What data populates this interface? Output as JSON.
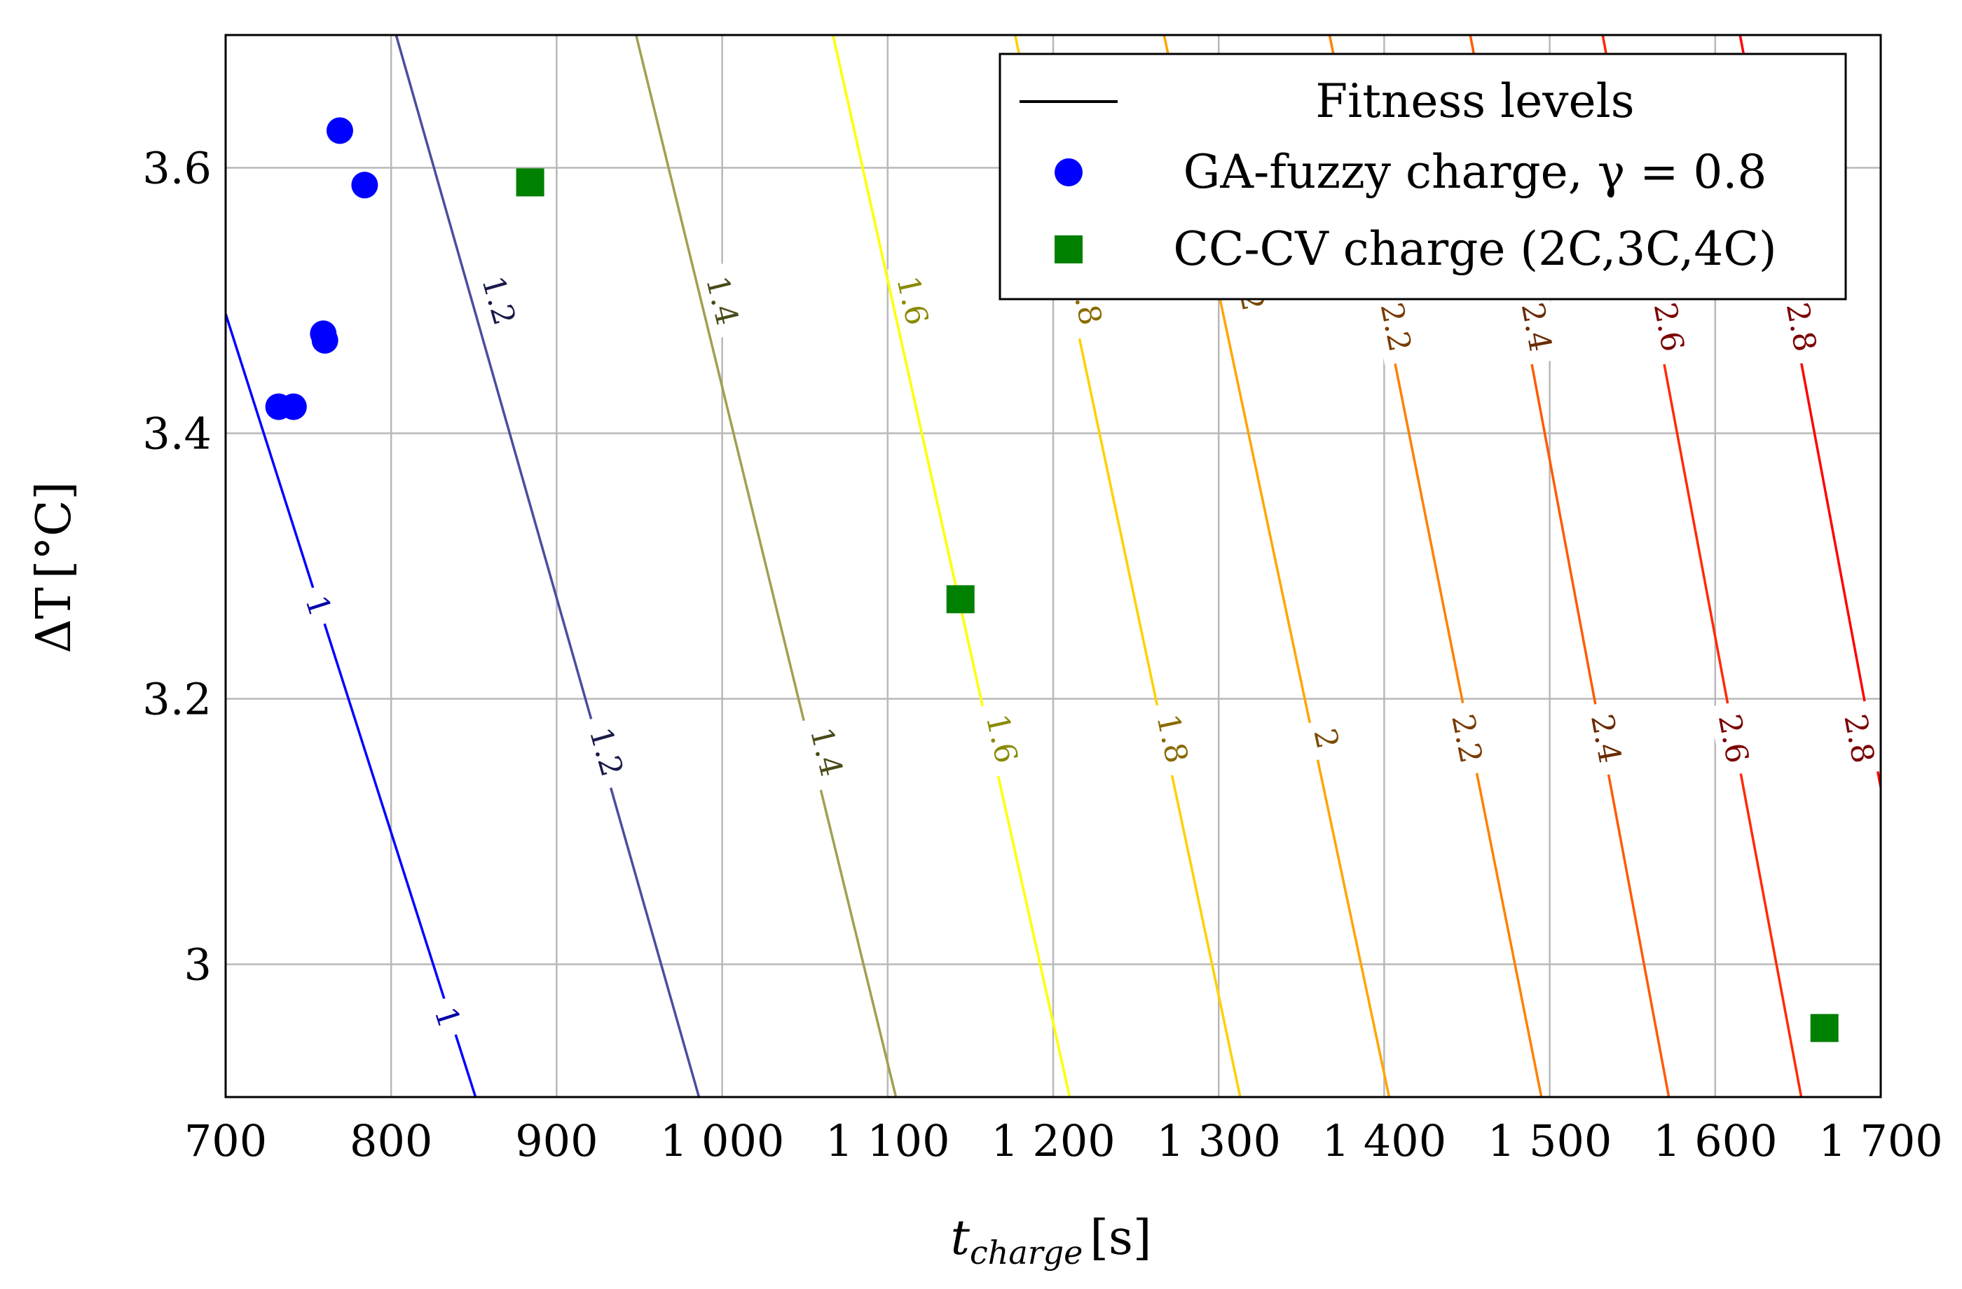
{
  "chart_data": {
    "type": "scatter",
    "title": "",
    "xlabel": {
      "var": "t",
      "sub": "charge",
      "unit": "[s]"
    },
    "ylabel": {
      "var": "ΔT",
      "unit": "[°C]"
    },
    "xlim": [
      700,
      1700
    ],
    "ylim": [
      2.9,
      3.7
    ],
    "xticks": [
      700,
      800,
      900,
      1000,
      1100,
      1200,
      1300,
      1400,
      1500,
      1600,
      1700
    ],
    "xtick_labels": [
      "700",
      "800",
      "900",
      "1 000",
      "1 100",
      "1 200",
      "1 300",
      "1 400",
      "1 500",
      "1 600",
      "1 700"
    ],
    "yticks": [
      3.0,
      3.2,
      3.4,
      3.6
    ],
    "ytick_labels": [
      "3",
      "3.2",
      "3.4",
      "3.6"
    ],
    "grid": true,
    "legend_position": "top-right",
    "legend": [
      {
        "marker": "line",
        "label": "Fitness levels",
        "color": "#000000"
      },
      {
        "marker": "circle",
        "label": "GA-fuzzy charge, γ = 0.8",
        "color": "#0000ff"
      },
      {
        "marker": "square",
        "label": "CC-CV charge (2C,3C,4C)",
        "color": "#008000"
      }
    ],
    "series": [
      {
        "name": "GA-fuzzy charge, γ = 0.8",
        "marker": "circle",
        "color": "#0000ff",
        "points": [
          {
            "x": 732,
            "y": 3.42
          },
          {
            "x": 741,
            "y": 3.42
          },
          {
            "x": 759,
            "y": 3.475
          },
          {
            "x": 760,
            "y": 3.47
          },
          {
            "x": 769,
            "y": 3.628
          },
          {
            "x": 784,
            "y": 3.587
          }
        ]
      },
      {
        "name": "CC-CV charge (2C,3C,4C)",
        "marker": "square",
        "color": "#008000",
        "points": [
          {
            "x": 884,
            "y": 3.589
          },
          {
            "x": 1144,
            "y": 3.275
          },
          {
            "x": 1666,
            "y": 2.952
          }
        ]
      }
    ],
    "contours": [
      {
        "level": "1",
        "color": "#0000ff",
        "label_color": "#0000aa",
        "x_top": 700,
        "x_bottom": 851,
        "y_top": 3.49,
        "labels": [
          {
            "x": 756,
            "y": 3.27
          },
          {
            "x": 834,
            "y": 2.96
          }
        ]
      },
      {
        "level": "1.2",
        "color": "#4c4ca0",
        "label_color": "#1a1a4a",
        "x_top": 803,
        "x_bottom": 986,
        "labels": [
          {
            "x": 865,
            "y": 3.5
          },
          {
            "x": 930,
            "y": 3.16
          }
        ]
      },
      {
        "level": "1.4",
        "color": "#a0a050",
        "label_color": "#4a4a1a",
        "x_top": 948,
        "x_bottom": 1105,
        "labels": [
          {
            "x": 1000,
            "y": 3.5
          },
          {
            "x": 1063,
            "y": 3.16
          }
        ]
      },
      {
        "level": "1.6",
        "color": "#ffff00",
        "label_color": "#8a8a00",
        "x_top": 1067,
        "x_bottom": 1210,
        "labels": [
          {
            "x": 1115,
            "y": 3.5
          },
          {
            "x": 1169,
            "y": 3.17
          }
        ]
      },
      {
        "level": "1.8",
        "color": "#ffd000",
        "label_color": "#8a6a00",
        "x_top": 1177,
        "x_bottom": 1313,
        "labels": [
          {
            "x": 1220,
            "y": 3.5
          },
          {
            "x": 1272,
            "y": 3.17
          }
        ]
      },
      {
        "level": "2",
        "color": "#ffa500",
        "label_color": "#7a4a00",
        "x_top": 1267,
        "x_bottom": 1403,
        "labels": [
          {
            "x": 1320,
            "y": 3.5
          },
          {
            "x": 1365,
            "y": 3.17
          }
        ]
      },
      {
        "level": "2.2",
        "color": "#ff8000",
        "label_color": "#7a3a00",
        "x_top": 1367,
        "x_bottom": 1495,
        "labels": [
          {
            "x": 1407,
            "y": 3.48
          },
          {
            "x": 1450,
            "y": 3.17
          }
        ]
      },
      {
        "level": "2.4",
        "color": "#ff5a00",
        "label_color": "#6a2a00",
        "x_top": 1452,
        "x_bottom": 1572,
        "labels": [
          {
            "x": 1492,
            "y": 3.48
          },
          {
            "x": 1534,
            "y": 3.17
          }
        ]
      },
      {
        "level": "2.6",
        "color": "#ff2a00",
        "label_color": "#7a0000",
        "x_top": 1532,
        "x_bottom": 1652,
        "labels": [
          {
            "x": 1572,
            "y": 3.48
          },
          {
            "x": 1611,
            "y": 3.17
          }
        ]
      },
      {
        "level": "2.8",
        "color": "#ff0000",
        "label_color": "#7a0000",
        "x_top": 1615,
        "x_bottom": 1735,
        "labels": [
          {
            "x": 1652,
            "y": 3.48
          },
          {
            "x": 1687,
            "y": 3.17
          }
        ]
      }
    ]
  }
}
